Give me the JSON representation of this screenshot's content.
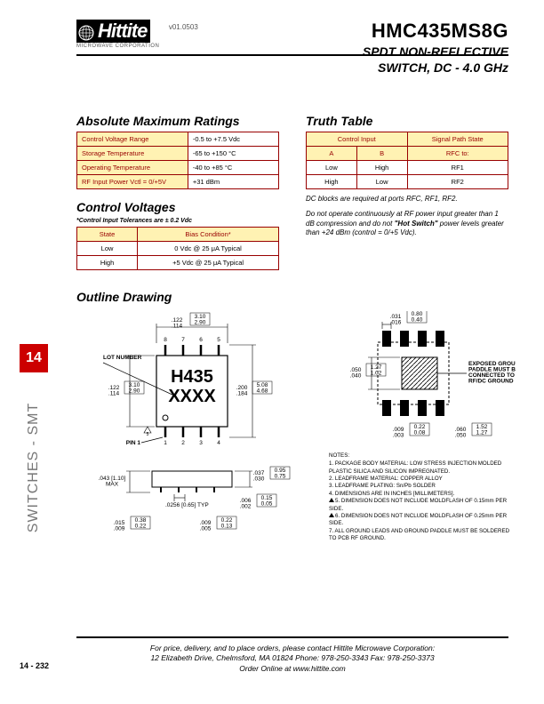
{
  "header": {
    "company": "Hittite",
    "company_sub": "MICROWAVE CORPORATION",
    "version": "v01.0503",
    "part_number": "HMC435MS8G",
    "description_l1": "SPDT NON-REFLECTIVE",
    "description_l2": "SWITCH, DC - 4.0 GHz"
  },
  "sidebar": {
    "tab": "14",
    "label": "SWITCHES - SMT"
  },
  "amr": {
    "title": "Absolute Maximum Ratings",
    "rows": [
      {
        "param": "Control Voltage Range",
        "val": "-0.5 to +7.5 Vdc"
      },
      {
        "param": "Storage Temperature",
        "val": "-65 to +150 °C"
      },
      {
        "param": "Operating Temperature",
        "val": "-40 to +85 °C"
      },
      {
        "param": "RF Input Power Vctl = 0/+5V",
        "val": "+31 dBm"
      }
    ]
  },
  "cv": {
    "title": "Control Voltages",
    "subtitle": "*Control Input Tolerances are ± 0.2 Vdc",
    "head": {
      "c1": "State",
      "c2": "Bias Condition*"
    },
    "rows": [
      {
        "c1": "Low",
        "c2": "0 Vdc @ 25 μA Typical"
      },
      {
        "c1": "High",
        "c2": "+5 Vdc @ 25 μA Typical"
      }
    ]
  },
  "tt": {
    "title": "Truth Table",
    "head": {
      "ci": "Control Input",
      "sps": "Signal Path State",
      "a": "A",
      "b": "B",
      "rfc": "RFC to:"
    },
    "rows": [
      {
        "a": "Low",
        "b": "High",
        "r": "RF1"
      },
      {
        "a": "High",
        "b": "Low",
        "r": "RF2"
      }
    ],
    "note1": "DC blocks are required at ports RFC, RF1, RF2.",
    "note2_pre": "Do not operate continuously at RF power input greater than 1 dB compression and do not ",
    "note2_hot": "\"Hot Switch\"",
    "note2_post": " power levels greater than +24 dBm (control = 0/+5 Vdc)."
  },
  "outline": {
    "title": "Outline Drawing",
    "chip_label_top": "H435",
    "chip_label_bot": "XXXX",
    "lot_label": "LOT NUMBER",
    "pin1_label": "PIN 1",
    "pins_top": [
      "8",
      "7",
      "6",
      "5"
    ],
    "pins_bot": [
      "1",
      "2",
      "3",
      "4"
    ],
    "dim_a": ".122\n.114",
    "dim_a_mm": "3.10\n2.90",
    "dim_b": ".122\n.114",
    "dim_b_mm": "3.10\n2.90",
    "dim_c": ".200\n.184",
    "dim_c_mm": "5.08\n4.68",
    "dim_d": ".037\n.030",
    "dim_d_mm": "0.95\n0.75",
    "dim_e": ".043 [1.10]\nMAX",
    "dim_f": ".0256 [0.65] TYP",
    "dim_g": ".006\n.002",
    "dim_g_mm": "0.15\n0.05",
    "dim_h": ".009\n.005",
    "dim_h_mm": "0.22\n0.13",
    "dim_i": ".015\n.009",
    "dim_i_mm": "0.38\n0.22",
    "pcb_a": ".031\n.016",
    "pcb_a_mm": "0.80\n0.40",
    "pcb_b": ".050\n.040",
    "pcb_b_mm": "1.27\n1.02",
    "pcb_c": ".009\n.003",
    "pcb_c_mm": "0.22\n0.08",
    "pcb_d": ".060\n.050",
    "pcb_d_mm": "1.52\n1.27",
    "pcb_note": "EXPOSED GROUND\nPADDLE MUST BE\nCONNECTED TO\nRF/DC GROUND",
    "notes": {
      "hd": "NOTES:",
      "items": [
        "1. PACKAGE BODY MATERIAL: LOW STRESS INJECTION MOLDED PLASTIC SILICA AND SILICON IMPREGNATED.",
        "2. LEADFRAME MATERIAL: COPPER ALLOY",
        "3. LEADFRAME PLATING: Sn/Pb SOLDER",
        "4. DIMENSIONS ARE IN INCHES [MILLIMETERS].",
        "5. DIMENSION DOES NOT INCLUDE MOLDFLASH OF 0.15mm PER SIDE.",
        "6. DIMENSION DOES NOT INCLUDE MOLDFLASH OF 0.25mm PER SIDE.",
        "7. ALL GROUND LEADS AND GROUND PADDLE MUST BE SOLDERED TO PCB RF GROUND."
      ]
    }
  },
  "footer": {
    "l1": "For price, delivery, and to place orders, please contact Hittite Microwave Corporation:",
    "l2": "12 Elizabeth Drive, Chelmsford, MA 01824 Phone: 978-250-3343  Fax: 978-250-3373",
    "l3": "Order Online at www.hittite.com",
    "pagenum": "14 - 232"
  },
  "colors": {
    "accent": "#cc0000",
    "table_border": "#980000",
    "table_head_bg": "#fff2b3",
    "sidebar_gray": "#777777"
  }
}
